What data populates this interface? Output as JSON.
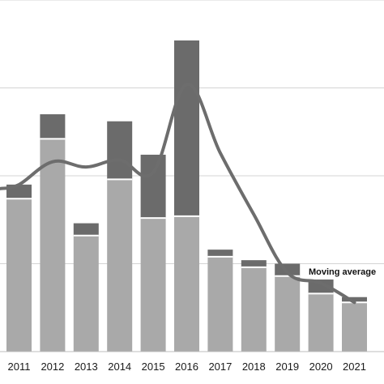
{
  "chart_data": {
    "type": "bar",
    "stacked": true,
    "categories": [
      "2011",
      "2012",
      "2013",
      "2014",
      "2015",
      "2016",
      "2017",
      "2018",
      "2019",
      "2020",
      "2021"
    ],
    "series": [
      {
        "values": [
          8.7,
          12.1,
          6.6,
          9.8,
          7.6,
          7.7,
          5.4,
          4.8,
          4.3,
          3.3,
          2.8
        ],
        "color": "#a9a9a9"
      },
      {
        "values": [
          0.8,
          1.4,
          0.7,
          3.3,
          3.6,
          10.0,
          0.4,
          0.4,
          0.7,
          0.8,
          0.3
        ],
        "color": "#6b6b6b"
      }
    ],
    "line": {
      "name": "Moving average",
      "color": "#6d6d6d",
      "values": [
        9.5,
        10.8,
        10.5,
        10.9,
        10.2,
        15.2,
        11.3,
        7.8,
        4.5,
        3.9,
        2.8
      ]
    },
    "annotations": [
      {
        "text": "Moving average"
      }
    ],
    "ylim": [
      0,
      20
    ],
    "gridlines": [
      5,
      10,
      15,
      20
    ],
    "grid": true,
    "legend": "none",
    "title": "",
    "xlabel": "",
    "ylabel": ""
  }
}
